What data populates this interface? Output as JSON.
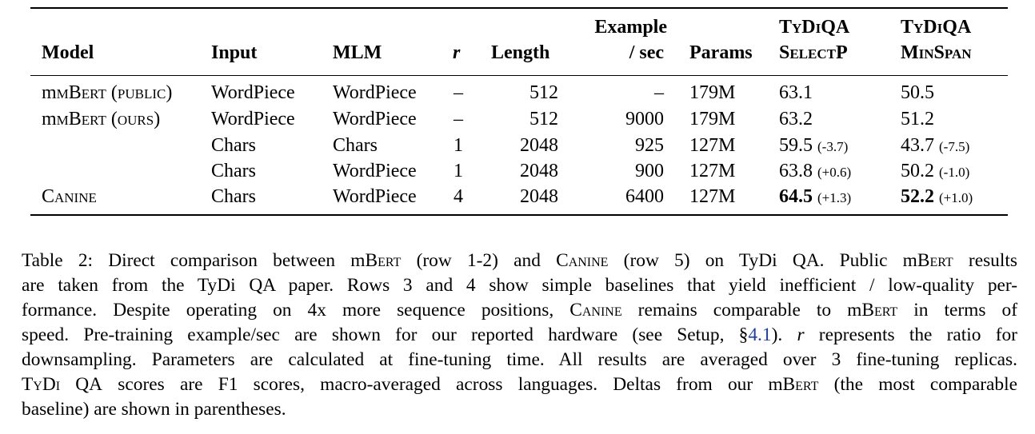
{
  "table": {
    "headers": {
      "model": "Model",
      "input": "Input",
      "mlm": "MLM",
      "r": "r",
      "length": "Length",
      "example_top": "Example",
      "example_bottom": "/ sec",
      "params": "Params",
      "tydiqa1_top": "TyDiQA",
      "tydiqa1_bottom": "SelectP",
      "tydiqa2_top": "TyDiQA",
      "tydiqa2_bottom": "MinSpan"
    },
    "rows": [
      {
        "model": "mBert (public)",
        "input": "WordPiece",
        "mlm": "WordPiece",
        "r": "–",
        "length": "512",
        "speed": "–",
        "params": "179M",
        "selectp": "63.1",
        "selectp_delta": "",
        "minspan": "50.5",
        "minspan_delta": ""
      },
      {
        "model": "mBert (ours)",
        "input": "WordPiece",
        "mlm": "WordPiece",
        "r": "–",
        "length": "512",
        "speed": "9000",
        "params": "179M",
        "selectp": "63.2",
        "selectp_delta": "",
        "minspan": "51.2",
        "minspan_delta": ""
      },
      {
        "model": "",
        "input": "Chars",
        "mlm": "Chars",
        "r": "1",
        "length": "2048",
        "speed": "925",
        "params": "127M",
        "selectp": "59.5",
        "selectp_delta": "(-3.7)",
        "minspan": "43.7",
        "minspan_delta": "(-7.5)"
      },
      {
        "model": "",
        "input": "Chars",
        "mlm": "WordPiece",
        "r": "1",
        "length": "2048",
        "speed": "900",
        "params": "127M",
        "selectp": "63.8",
        "selectp_delta": "(+0.6)",
        "minspan": "50.2",
        "minspan_delta": "(-1.0)"
      },
      {
        "model": "Canine",
        "input": "Chars",
        "mlm": "WordPiece",
        "r": "4",
        "length": "2048",
        "speed": "6400",
        "params": "127M",
        "selectp": "64.5",
        "selectp_delta": "(+1.3)",
        "minspan": "52.2",
        "minspan_delta": "(+1.0)"
      }
    ]
  },
  "caption": {
    "l1_a": "Table 2:  Direct comparison between m",
    "l1_b": "Bert",
    "l1_c": " (row 1-2) and ",
    "l1_d": "Canine",
    "l1_e": " (row 5) on TyDi QA. Public m",
    "l1_f": "Bert",
    "l1_g": " results",
    "l2": "are taken from the TyDi QA paper.  Rows 3 and 4 show simple baselines that yield inefficient / low-quality per-",
    "l3_a": "formance.  Despite operating on 4x more sequence positions, ",
    "l3_b": "Canine",
    "l3_c": " remains comparable to m",
    "l3_d": "Bert",
    "l3_e": " in terms of",
    "l4_a": "speed.  Pre-training example/sec are shown for our reported hardware (see Setup, §",
    "l4_link": "4.1",
    "l4_b": ").  ",
    "l4_r": "r",
    "l4_c": " represents the ratio for",
    "l5": "downsampling.  Parameters are calculated at fine-tuning time.  All results are averaged over 3 fine-tuning replicas.",
    "l6_a": "TyDi QA",
    "l6_b": " scores are F1 scores, macro-averaged across languages.  Deltas from our m",
    "l6_c": "Bert",
    "l6_d": " (the most comparable",
    "l7": "baseline) are shown in parentheses."
  }
}
